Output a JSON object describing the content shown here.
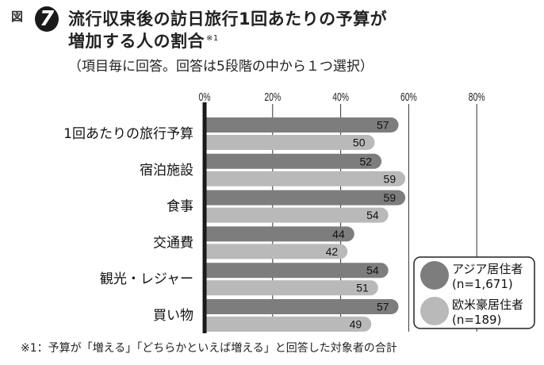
{
  "header": {
    "figure_label": "図",
    "figure_number": "7",
    "title_line1": "流行収束後の訪日旅行1回あたりの予算が",
    "title_line2": "増加する人の割合",
    "title_note_mark": "※1",
    "subtitle": "（項目毎に回答。回答は5段階の中から１つ選択）"
  },
  "footnote": "※1：予算が「増える」「どちらかといえば増える」と回答した対象者の合計",
  "colors": {
    "asia": "#7d7d7d",
    "western": "#b9b9b9",
    "axis": "#1a1a1a",
    "grid": "#333333"
  },
  "chart_data": {
    "type": "bar",
    "orientation": "horizontal",
    "categories": [
      "1回あたりの旅行予算",
      "宿泊施設",
      "食事",
      "交通費",
      "観光・レジャー",
      "買い物"
    ],
    "series": [
      {
        "name": "アジア居住者",
        "sample": "(n=1,671)",
        "values": [
          57,
          52,
          59,
          44,
          54,
          57
        ]
      },
      {
        "name": "欧米豪居住者",
        "sample": "(n=189)",
        "values": [
          50,
          59,
          54,
          42,
          51,
          49
        ]
      }
    ],
    "x_ticks": [
      "0%",
      "20%",
      "40%",
      "60%",
      "80%"
    ],
    "xlim": [
      0,
      80
    ],
    "grid": true,
    "legend_position": "bottom-right"
  }
}
